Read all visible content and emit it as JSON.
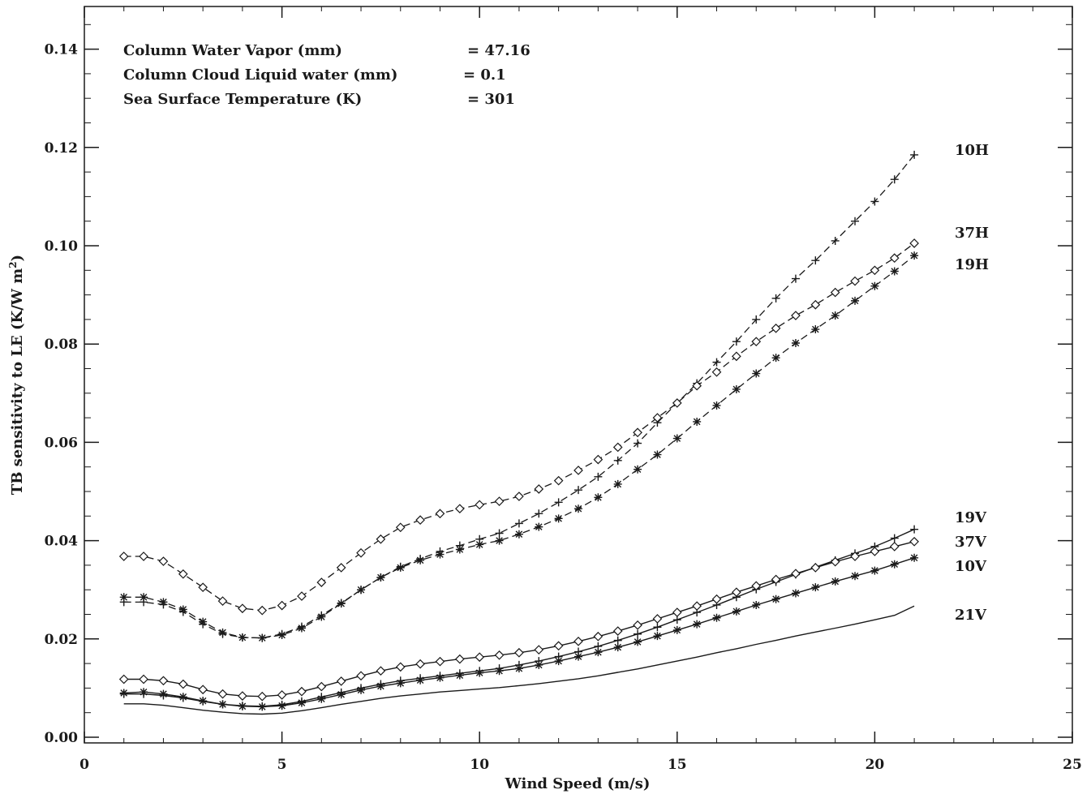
{
  "chart_data": {
    "type": "line",
    "xlabel": "Wind Speed (m/s)",
    "ylabel_main": "TB sensitivity to LE (K/W m",
    "ylabel_sup": "2",
    "ylabel_close": ")",
    "xlim": [
      0,
      25
    ],
    "ylim": [
      0,
      0.15
    ],
    "x_ticks": [
      0,
      5,
      10,
      15,
      20,
      25
    ],
    "x_tick_labels": [
      "0",
      "5",
      "10",
      "15",
      "20",
      "25"
    ],
    "y_ticks": [
      0.0,
      0.02,
      0.04,
      0.06,
      0.08,
      0.1,
      0.12,
      0.14
    ],
    "y_tick_labels": [
      "0.00",
      "0.02",
      "0.04",
      "0.06",
      "0.08",
      "0.10",
      "0.12",
      "0.14"
    ],
    "grid": false,
    "annotations": [
      {
        "label": "Column Water Vapor (mm)",
        "value": "= 47.16"
      },
      {
        "label": "Column Cloud Liquid water (mm)",
        "value": "= 0.1"
      },
      {
        "label": "Sea Surface Temperature (K)",
        "value": "= 301"
      }
    ],
    "x": [
      1,
      1.5,
      2,
      2.5,
      3,
      3.5,
      4,
      4.5,
      5,
      5.5,
      6,
      6.5,
      7,
      7.5,
      8,
      8.5,
      9,
      9.5,
      10,
      10.5,
      11,
      11.5,
      12,
      12.5,
      13,
      13.5,
      14,
      14.5,
      15,
      15.5,
      16,
      16.5,
      17,
      17.5,
      18,
      18.5,
      19,
      19.5,
      20,
      20.5,
      21
    ],
    "series": [
      {
        "name": "10H",
        "marker": "plus",
        "dash": true,
        "values": [
          0.0275,
          0.0275,
          0.027,
          0.0255,
          0.023,
          0.021,
          0.0203,
          0.0202,
          0.021,
          0.0225,
          0.0248,
          0.0273,
          0.03,
          0.0325,
          0.0347,
          0.0363,
          0.0378,
          0.039,
          0.0403,
          0.0415,
          0.0435,
          0.0455,
          0.0478,
          0.0503,
          0.053,
          0.0563,
          0.0598,
          0.064,
          0.068,
          0.072,
          0.0763,
          0.0805,
          0.085,
          0.0893,
          0.0933,
          0.097,
          0.101,
          0.105,
          0.109,
          0.1135,
          0.1185
        ]
      },
      {
        "name": "37H",
        "marker": "diamond",
        "dash": true,
        "values": [
          0.0368,
          0.0368,
          0.0358,
          0.0332,
          0.0305,
          0.0277,
          0.0262,
          0.0258,
          0.0268,
          0.0287,
          0.0315,
          0.0345,
          0.0375,
          0.0403,
          0.0427,
          0.0442,
          0.0455,
          0.0465,
          0.0473,
          0.048,
          0.049,
          0.0505,
          0.0522,
          0.0543,
          0.0565,
          0.059,
          0.062,
          0.065,
          0.068,
          0.0715,
          0.0743,
          0.0775,
          0.0805,
          0.0832,
          0.0858,
          0.088,
          0.0905,
          0.0928,
          0.095,
          0.0975,
          0.1005
        ]
      },
      {
        "name": "19H",
        "marker": "asterisk",
        "dash": true,
        "values": [
          0.0285,
          0.0285,
          0.0275,
          0.026,
          0.0235,
          0.0213,
          0.0203,
          0.0202,
          0.0208,
          0.0222,
          0.0245,
          0.0272,
          0.03,
          0.0325,
          0.0345,
          0.036,
          0.0372,
          0.0382,
          0.0392,
          0.04,
          0.0413,
          0.0428,
          0.0445,
          0.0465,
          0.0488,
          0.0515,
          0.0545,
          0.0575,
          0.0608,
          0.0642,
          0.0675,
          0.0708,
          0.074,
          0.0772,
          0.0802,
          0.083,
          0.0858,
          0.0888,
          0.0918,
          0.0948,
          0.098
        ]
      },
      {
        "name": "19V",
        "marker": "plus",
        "dash": false,
        "values": [
          0.0088,
          0.0088,
          0.0085,
          0.008,
          0.0073,
          0.0067,
          0.0064,
          0.0063,
          0.0066,
          0.0073,
          0.0082,
          0.0091,
          0.01,
          0.0108,
          0.0115,
          0.012,
          0.0125,
          0.013,
          0.0135,
          0.014,
          0.0147,
          0.0155,
          0.0164,
          0.0174,
          0.0185,
          0.0197,
          0.021,
          0.0224,
          0.0239,
          0.0254,
          0.0269,
          0.0285,
          0.0301,
          0.0316,
          0.0331,
          0.0346,
          0.036,
          0.0374,
          0.0388,
          0.0405,
          0.0423
        ]
      },
      {
        "name": "37V",
        "marker": "diamond",
        "dash": false,
        "values": [
          0.0118,
          0.0118,
          0.0115,
          0.0108,
          0.0097,
          0.0088,
          0.0084,
          0.0083,
          0.0086,
          0.0093,
          0.0103,
          0.0114,
          0.0125,
          0.0135,
          0.0143,
          0.0149,
          0.0154,
          0.0159,
          0.0163,
          0.0167,
          0.0172,
          0.0178,
          0.0186,
          0.0195,
          0.0205,
          0.0216,
          0.0228,
          0.0241,
          0.0254,
          0.0267,
          0.0281,
          0.0295,
          0.0308,
          0.0321,
          0.0333,
          0.0345,
          0.0357,
          0.0368,
          0.0378,
          0.0388,
          0.0398
        ]
      },
      {
        "name": "10V",
        "marker": "asterisk",
        "dash": false,
        "values": [
          0.009,
          0.0092,
          0.0088,
          0.0082,
          0.0074,
          0.0067,
          0.0063,
          0.0062,
          0.0064,
          0.007,
          0.0078,
          0.0087,
          0.0096,
          0.0104,
          0.011,
          0.0116,
          0.0121,
          0.0126,
          0.0131,
          0.0135,
          0.014,
          0.0147,
          0.0155,
          0.0164,
          0.0173,
          0.0183,
          0.0194,
          0.0206,
          0.0218,
          0.023,
          0.0243,
          0.0256,
          0.0269,
          0.0281,
          0.0293,
          0.0305,
          0.0317,
          0.0328,
          0.0339,
          0.0352,
          0.0365
        ]
      },
      {
        "name": "21V",
        "marker": "none",
        "dash": false,
        "values": [
          0.0068,
          0.0068,
          0.0065,
          0.006,
          0.0055,
          0.0051,
          0.0048,
          0.0047,
          0.0049,
          0.0054,
          0.006,
          0.0067,
          0.0073,
          0.0079,
          0.0084,
          0.0088,
          0.0092,
          0.0095,
          0.0098,
          0.0101,
          0.0105,
          0.0109,
          0.0114,
          0.0119,
          0.0125,
          0.0132,
          0.0139,
          0.0147,
          0.0155,
          0.0163,
          0.0172,
          0.018,
          0.0189,
          0.0197,
          0.0206,
          0.0214,
          0.0222,
          0.023,
          0.0239,
          0.0248,
          0.0267
        ]
      }
    ]
  }
}
